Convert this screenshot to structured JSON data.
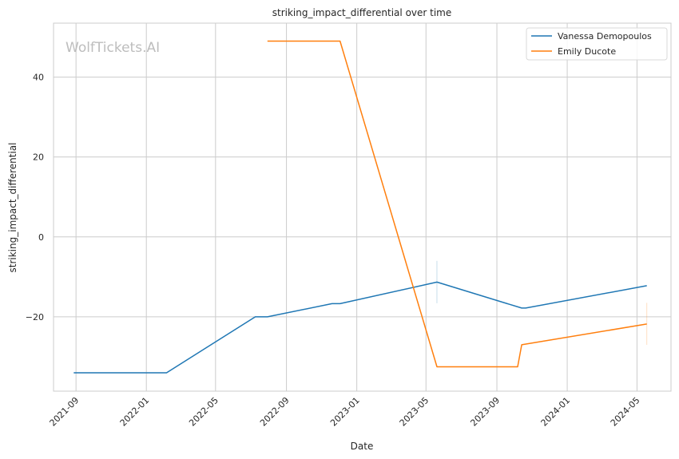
{
  "chart_data": {
    "type": "line",
    "title": "striking_impact_differential over time",
    "xlabel": "Date",
    "ylabel": "striking_impact_differential",
    "watermark": "WolfTickets.AI",
    "x_tick_labels": [
      "2021-09",
      "2022-01",
      "2022-05",
      "2022-09",
      "2023-01",
      "2023-05",
      "2023-09",
      "2024-01",
      "2024-05"
    ],
    "y_ticks": [
      -20,
      0,
      20,
      40
    ],
    "xlim": [
      "2021-07-24",
      "2024-06-29"
    ],
    "ylim": [
      -38.6,
      53.5
    ],
    "grid": true,
    "legend_position": "top-right",
    "series": [
      {
        "name": "Vanessa Demopoulos",
        "color": "#1f77b4",
        "points": [
          {
            "x": "2021-08-28",
            "y": -34
          },
          {
            "x": "2022-02-05",
            "y": -34
          },
          {
            "x": "2022-07-09",
            "y": -20
          },
          {
            "x": "2022-07-30",
            "y": -20
          },
          {
            "x": "2022-11-19",
            "y": -16.7
          },
          {
            "x": "2022-12-03",
            "y": -16.7
          },
          {
            "x": "2023-05-20",
            "y": -11.3
          },
          {
            "x": "2023-10-14",
            "y": -17.8
          },
          {
            "x": "2023-10-21",
            "y": -17.8
          },
          {
            "x": "2024-05-18",
            "y": -12.2
          }
        ]
      },
      {
        "name": "Emily Ducote",
        "color": "#ff7f0e",
        "points": [
          {
            "x": "2022-07-30",
            "y": 49
          },
          {
            "x": "2022-12-03",
            "y": 49
          },
          {
            "x": "2023-05-20",
            "y": -32.5
          },
          {
            "x": "2023-10-07",
            "y": -32.5
          },
          {
            "x": "2023-10-14",
            "y": -27
          },
          {
            "x": "2024-05-18",
            "y": -21.8
          }
        ]
      }
    ],
    "error_bars": [
      {
        "series": "Vanessa Demopoulos",
        "x": "2023-05-20",
        "low": -16.6,
        "high": -6,
        "color": "#1f77b4"
      },
      {
        "series": "Emily Ducote",
        "x": "2024-05-18",
        "low": -27,
        "high": -16.5,
        "color": "#ff7f0e"
      }
    ]
  }
}
